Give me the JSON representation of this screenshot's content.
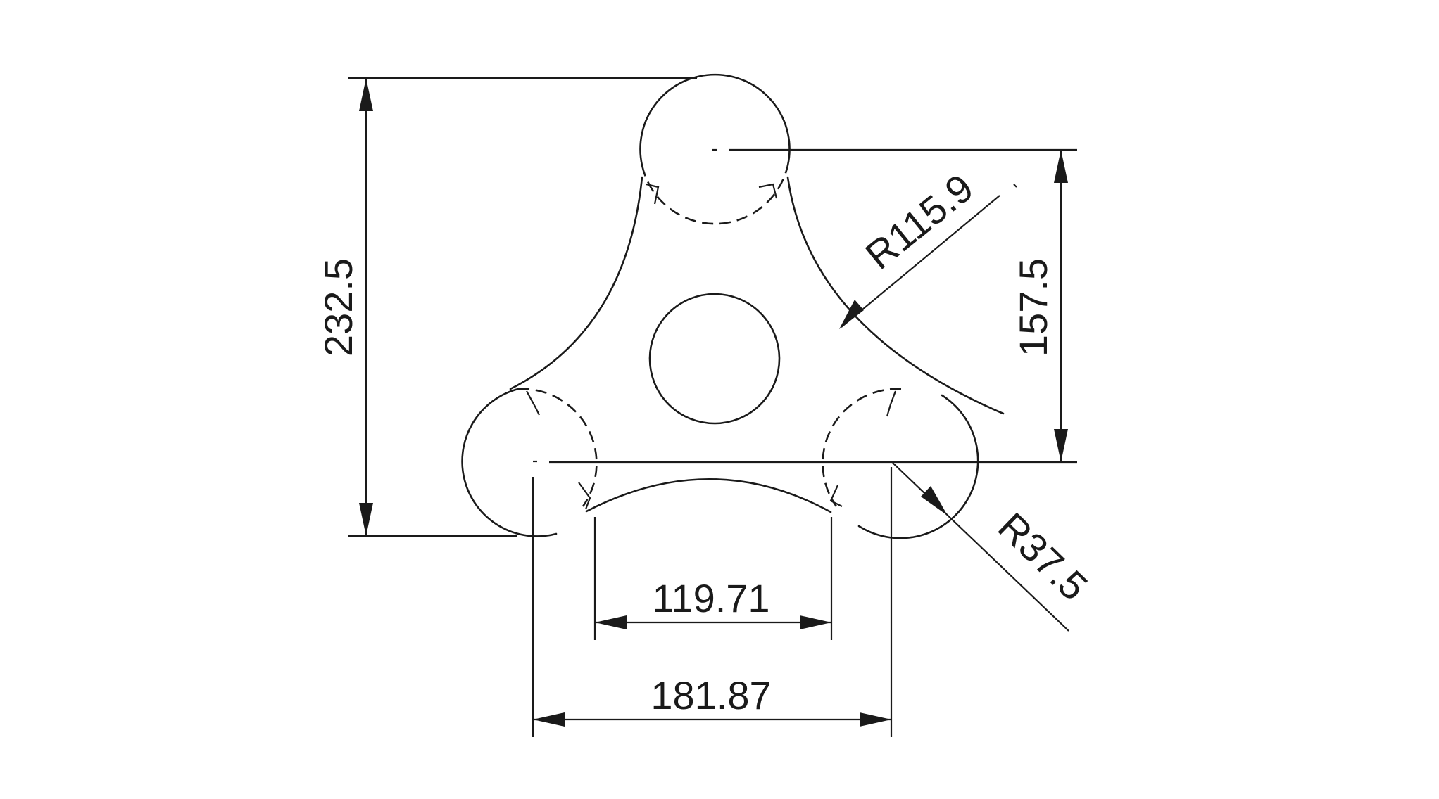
{
  "drawing": {
    "dimensions": {
      "overall_height": "232.5",
      "center_height": "157.5",
      "inner_width": "119.71",
      "outer_width": "181.87",
      "arc_radius": "R115.9",
      "lobe_radius": "R37.5"
    }
  }
}
